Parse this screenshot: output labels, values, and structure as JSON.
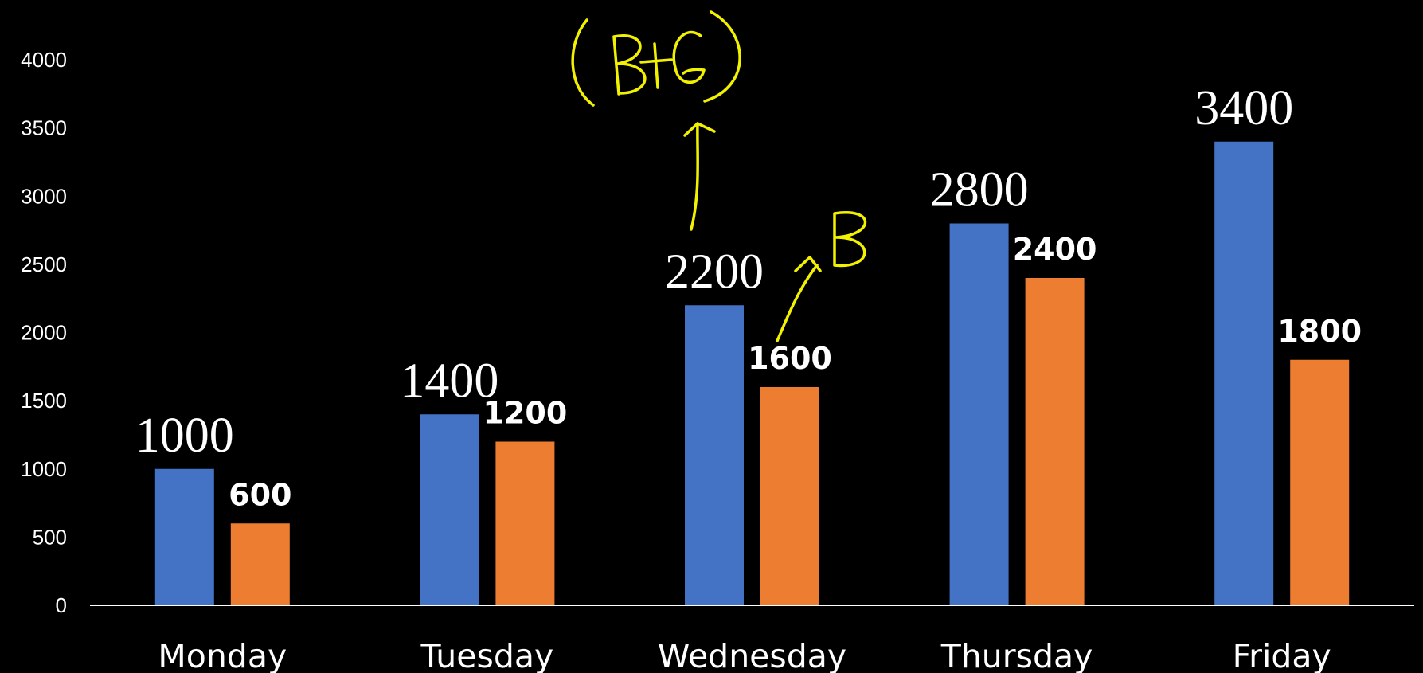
{
  "chart_data": {
    "type": "bar",
    "categories": [
      "Monday",
      "Tuesday",
      "Wednesday",
      "Thursday",
      "Friday"
    ],
    "series": [
      {
        "values": [
          1000,
          1400,
          2200,
          2800,
          3400
        ],
        "color": "#4472C4"
      },
      {
        "values": [
          600,
          1200,
          1600,
          2400,
          1800
        ],
        "color": "#ED7D31"
      }
    ],
    "ylim": [
      0,
      4000
    ],
    "yticks": [
      0,
      500,
      1000,
      1500,
      2000,
      2500,
      3000,
      3500,
      4000
    ],
    "grid": false,
    "legend": "none",
    "background": "#000000",
    "annotations": [
      {
        "text": "(B+G)",
        "style": "handwritten",
        "color": "#f2f200"
      },
      {
        "text": "B",
        "style": "handwritten",
        "color": "#f2f200"
      }
    ]
  }
}
